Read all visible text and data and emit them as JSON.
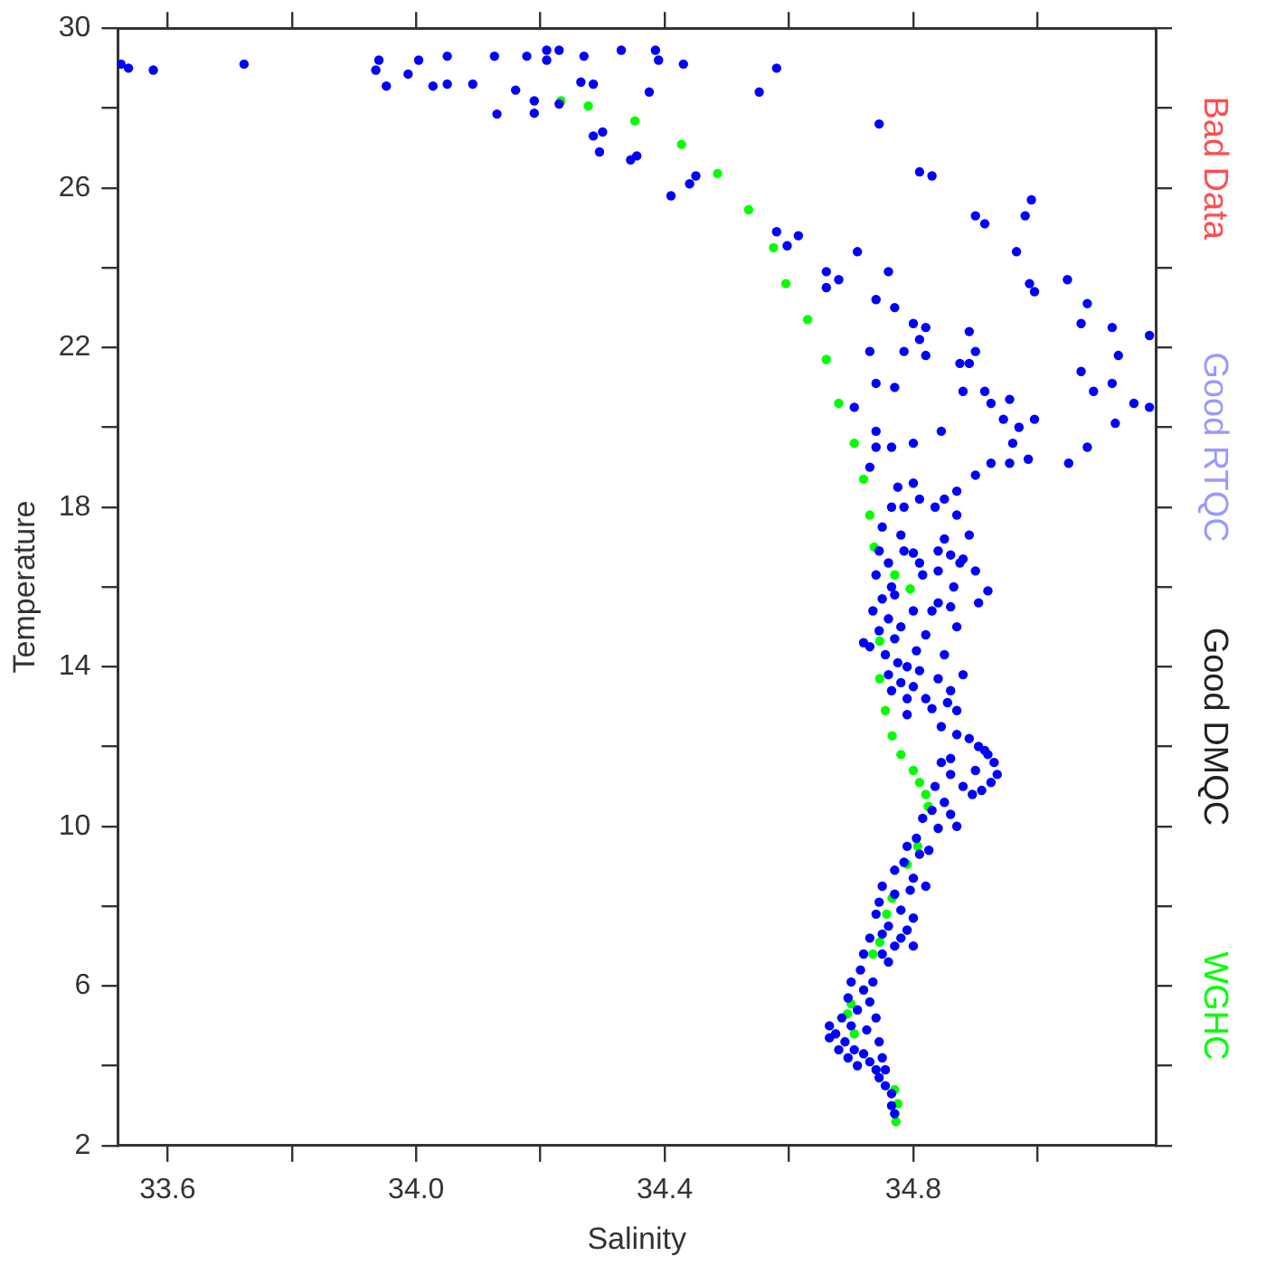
{
  "chart_data": {
    "type": "scatter",
    "xlabel": "Salinity",
    "ylabel": "Temperature",
    "xlim": [
      33.52,
      35.19
    ],
    "ylim": [
      2,
      30
    ],
    "xticks": [
      33.6,
      {
        "value": 33.8,
        "label": null
      },
      {
        "value": 34.0,
        "label": "34.0"
      },
      {
        "value": 34.2,
        "label": null
      },
      34.4,
      {
        "value": 34.6,
        "label": null
      },
      34.8,
      {
        "value": 35.0,
        "label": null
      }
    ],
    "yticks": [
      2,
      {
        "value": 4,
        "label": null
      },
      6,
      {
        "value": 8,
        "label": null
      },
      10,
      {
        "value": 12,
        "label": null
      },
      14,
      {
        "value": 16,
        "label": null
      },
      18,
      {
        "value": 20,
        "label": null
      },
      22,
      {
        "value": 24,
        "label": null
      },
      26,
      {
        "value": 28,
        "label": null
      },
      30
    ],
    "grid": false,
    "marker": "circle",
    "annotations": [
      "Bad Data",
      "Good DMQC"
    ],
    "series": [
      {
        "name": "Good RTQC",
        "color": "#0000ff",
        "x": [
          33.525,
          33.537,
          33.577,
          33.723,
          33.935,
          33.94,
          33.952,
          33.987,
          34.004,
          34.027,
          34.05,
          34.05,
          34.091,
          34.126,
          34.16,
          34.178,
          34.21,
          34.21,
          34.23,
          34.19,
          34.19,
          34.13,
          34.23,
          34.27,
          34.265,
          34.285,
          34.285,
          34.3,
          34.295,
          34.33,
          34.345,
          34.355,
          34.375,
          34.385,
          34.39,
          34.43,
          34.44,
          34.45,
          34.41,
          34.552,
          34.58,
          34.58,
          34.597,
          34.615,
          34.66,
          34.66,
          34.68,
          34.71,
          34.745,
          34.76,
          34.74,
          34.77,
          34.8,
          34.82,
          34.81,
          34.82,
          34.785,
          34.73,
          34.74,
          34.705,
          34.77,
          34.81,
          34.83,
          34.89,
          34.9,
          34.875,
          34.89,
          34.88,
          34.915,
          34.925,
          34.955,
          34.945,
          34.97,
          34.995,
          34.96,
          34.985,
          34.955,
          34.925,
          34.9,
          34.87,
          34.85,
          34.835,
          34.81,
          34.785,
          34.775,
          34.8,
          34.765,
          34.75,
          34.78,
          34.81,
          34.85,
          34.87,
          34.89,
          34.86,
          34.9,
          34.915,
          34.966,
          34.98,
          34.99,
          34.987,
          34.995,
          35.048,
          35.08,
          35.07,
          35.12,
          35.13,
          35.07,
          35.09,
          35.12,
          35.155,
          35.18,
          35.18,
          35.125,
          35.05,
          35.08,
          34.74,
          34.73,
          34.74,
          34.765,
          34.8,
          34.845,
          34.745,
          34.76,
          34.74,
          34.765,
          34.75,
          34.735,
          34.76,
          34.745,
          34.77,
          34.73,
          34.755,
          34.775,
          34.76,
          34.78,
          34.765,
          34.79,
          34.77,
          34.78,
          34.72,
          34.79,
          34.8,
          34.81,
          34.805,
          34.82,
          34.83,
          34.84,
          34.86,
          34.87,
          34.85,
          34.84,
          34.86,
          34.88,
          34.87,
          34.855,
          34.83,
          34.82,
          34.8,
          34.815,
          34.84,
          34.865,
          34.79,
          34.785,
          34.8,
          34.84,
          34.88,
          34.9,
          34.92,
          34.905,
          34.875,
          34.845,
          34.87,
          34.89,
          34.905,
          34.92,
          34.93,
          34.935,
          34.925,
          34.91,
          34.895,
          34.88,
          34.86,
          34.845,
          34.835,
          34.85,
          34.83,
          34.815,
          34.86,
          34.87,
          34.84,
          34.9,
          34.915,
          34.86,
          34.805,
          34.79,
          34.81,
          34.785,
          34.77,
          34.8,
          34.795,
          34.77,
          34.75,
          34.745,
          34.78,
          34.8,
          34.79,
          34.76,
          34.74,
          34.77,
          34.75,
          34.73,
          34.75,
          34.76,
          34.78,
          34.8,
          34.82,
          34.825,
          34.72,
          34.715,
          34.7,
          34.72,
          34.695,
          34.71,
          34.685,
          34.7,
          34.675,
          34.69,
          34.705,
          34.72,
          34.73,
          34.74,
          34.745,
          34.755,
          34.765,
          34.765,
          34.77,
          34.725,
          34.73,
          34.735,
          34.74,
          34.745,
          34.75,
          34.755,
          34.68,
          34.695,
          34.71,
          34.665,
          34.665
        ],
        "values": [
          29.1,
          29.0,
          28.95,
          29.1,
          28.95,
          29.2,
          28.55,
          28.85,
          29.2,
          28.55,
          28.6,
          29.3,
          28.6,
          29.3,
          28.45,
          29.3,
          29.45,
          29.2,
          29.45,
          28.18,
          27.87,
          27.85,
          28.1,
          29.3,
          28.65,
          28.6,
          27.3,
          27.4,
          26.9,
          29.45,
          26.7,
          26.8,
          28.4,
          29.45,
          29.2,
          29.1,
          26.1,
          26.3,
          25.8,
          28.4,
          29.0,
          24.9,
          24.55,
          24.8,
          23.9,
          23.5,
          23.7,
          24.4,
          27.6,
          23.9,
          23.2,
          23.0,
          22.6,
          22.5,
          22.2,
          21.8,
          21.9,
          21.9,
          21.1,
          20.5,
          21.0,
          26.4,
          26.3,
          22.4,
          21.9,
          21.6,
          21.6,
          20.9,
          20.9,
          20.6,
          20.7,
          20.2,
          20.0,
          20.2,
          19.6,
          19.2,
          19.1,
          19.1,
          18.8,
          18.4,
          18.2,
          18.0,
          18.2,
          18.0,
          18.5,
          18.6,
          18.0,
          17.5,
          17.3,
          16.6,
          17.2,
          17.8,
          17.3,
          16.8,
          25.3,
          25.1,
          24.4,
          25.3,
          25.7,
          23.6,
          23.4,
          23.7,
          23.1,
          22.6,
          22.5,
          21.8,
          21.4,
          20.9,
          21.1,
          20.6,
          22.3,
          20.5,
          20.1,
          19.1,
          19.5,
          19.9,
          19.0,
          19.5,
          19.5,
          19.6,
          19.9,
          16.9,
          16.6,
          16.3,
          16.0,
          15.7,
          15.4,
          15.2,
          14.9,
          14.7,
          14.5,
          14.3,
          14.1,
          13.8,
          13.6,
          13.4,
          13.2,
          15.8,
          15.0,
          14.6,
          14.0,
          13.5,
          13.9,
          14.4,
          14.8,
          15.4,
          15.6,
          15.5,
          15.0,
          14.3,
          13.7,
          13.4,
          13.8,
          12.9,
          13.1,
          12.95,
          13.2,
          15.4,
          16.3,
          16.4,
          16.0,
          12.8,
          16.9,
          16.85,
          16.9,
          16.7,
          16.4,
          15.9,
          15.6,
          16.6,
          12.5,
          12.3,
          12.2,
          12.0,
          11.8,
          11.6,
          11.3,
          11.1,
          10.9,
          10.8,
          11.0,
          11.3,
          11.6,
          11.0,
          10.6,
          10.4,
          10.2,
          10.3,
          10.0,
          9.95,
          11.4,
          11.9,
          11.7,
          9.7,
          9.5,
          9.3,
          9.1,
          8.9,
          8.7,
          8.4,
          8.3,
          8.5,
          8.1,
          7.9,
          7.7,
          7.4,
          7.5,
          7.8,
          7.0,
          6.8,
          7.2,
          7.3,
          6.6,
          7.2,
          7.0,
          8.5,
          9.4,
          6.8,
          6.4,
          6.1,
          5.9,
          5.7,
          5.4,
          5.2,
          5.0,
          4.8,
          4.6,
          4.4,
          4.3,
          4.1,
          3.9,
          3.7,
          3.5,
          3.3,
          3.0,
          2.8,
          4.9,
          5.6,
          6.1,
          5.2,
          4.6,
          4.2,
          3.9,
          4.4,
          4.2,
          4.0,
          4.7,
          5.0
        ]
      },
      {
        "name": "WGHC",
        "color": "#00ff00",
        "x": [
          34.233,
          34.277,
          34.352,
          34.427,
          34.485,
          34.535,
          34.575,
          34.595,
          34.63,
          34.66,
          34.68,
          34.705,
          34.72,
          34.73,
          34.737,
          34.77,
          34.795,
          34.746,
          34.746,
          34.755,
          34.766,
          34.78,
          34.8,
          34.81,
          34.82,
          34.824,
          34.807,
          34.79,
          34.766,
          34.757,
          34.746,
          34.735,
          34.7,
          34.694,
          34.705,
          34.77,
          34.775,
          34.772
        ],
        "values": [
          28.18,
          28.05,
          27.68,
          27.09,
          26.36,
          25.45,
          24.5,
          23.6,
          22.7,
          21.7,
          20.6,
          19.6,
          18.7,
          17.8,
          17.0,
          16.3,
          15.95,
          14.64,
          13.7,
          12.9,
          12.27,
          11.8,
          11.4,
          11.1,
          10.8,
          10.5,
          9.5,
          9.05,
          8.2,
          7.8,
          7.1,
          6.8,
          5.55,
          5.3,
          4.8,
          3.4,
          3.05,
          2.6
        ]
      }
    ]
  }
}
